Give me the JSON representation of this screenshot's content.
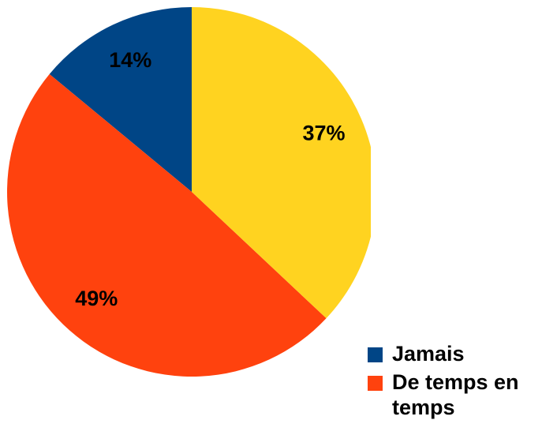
{
  "chart_data": {
    "type": "pie",
    "categories": [
      "Jamais",
      "De temps en temps",
      null
    ],
    "values": [
      14,
      49,
      37
    ],
    "value_labels": [
      "14%",
      "49%",
      "37%"
    ],
    "colors": [
      "#004586",
      "#ff420e",
      "#ffd320"
    ]
  }
}
